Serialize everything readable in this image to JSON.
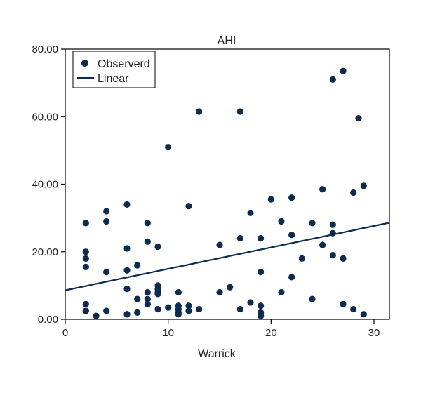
{
  "chart_data": {
    "type": "scatter",
    "title": "AHI",
    "xlabel": "Warrick",
    "ylabel": "",
    "xlim": [
      0,
      31.5
    ],
    "ylim": [
      0,
      80
    ],
    "x_ticks": [
      0,
      10,
      20,
      30
    ],
    "x_tick_labels": [
      "0",
      "10",
      "20",
      "30"
    ],
    "y_ticks": [
      0,
      20,
      40,
      60,
      80
    ],
    "y_tick_labels": [
      "0.00",
      "20.00",
      "40.00",
      "60.00",
      "80.00"
    ],
    "grid": false,
    "legend_position": "top-left",
    "colors": {
      "series": "#0d2b4e",
      "axis": "#000000"
    },
    "series": [
      {
        "name": "Observerd",
        "kind": "points",
        "x": [
          2,
          2,
          2,
          2,
          2,
          2,
          3,
          4,
          4,
          4,
          4,
          6,
          6,
          6,
          6,
          6,
          6,
          7,
          7,
          7,
          8,
          8,
          8,
          8,
          8,
          9,
          9,
          9,
          9,
          9,
          9,
          10,
          10,
          11,
          11,
          11,
          11,
          11,
          12,
          12,
          12,
          13,
          13,
          15,
          15,
          16,
          17,
          17,
          17,
          18,
          18,
          19,
          19,
          19,
          19,
          19,
          20,
          21,
          21,
          22,
          22,
          22,
          23,
          24,
          24,
          25,
          25,
          26,
          26,
          26,
          26,
          27,
          27,
          27,
          28,
          28,
          28.5,
          29,
          29
        ],
        "y": [
          28.5,
          20,
          18,
          15.5,
          4.5,
          2.5,
          1,
          32,
          29,
          14,
          2.5,
          34,
          21,
          14.5,
          9,
          1.5,
          1.5,
          16,
          6,
          2,
          28.5,
          23,
          8,
          6,
          4.5,
          21.5,
          10,
          9,
          8,
          7.5,
          3,
          51,
          3.5,
          8,
          4,
          3,
          2,
          1.5,
          33.5,
          4,
          2.5,
          61.5,
          3,
          22,
          8,
          9.5,
          61.5,
          24,
          3,
          31.5,
          5,
          24,
          14,
          4,
          2,
          1,
          35.5,
          29,
          8,
          36,
          25,
          12.5,
          18,
          28.5,
          6,
          38.5,
          22,
          71,
          28,
          25.5,
          19,
          73.5,
          18,
          4.5,
          37.5,
          3,
          59.5,
          39.5,
          1.5
        ]
      },
      {
        "name": "Linear",
        "kind": "line",
        "x": [
          0,
          31.5
        ],
        "y": [
          8.6,
          28.6
        ]
      }
    ]
  }
}
